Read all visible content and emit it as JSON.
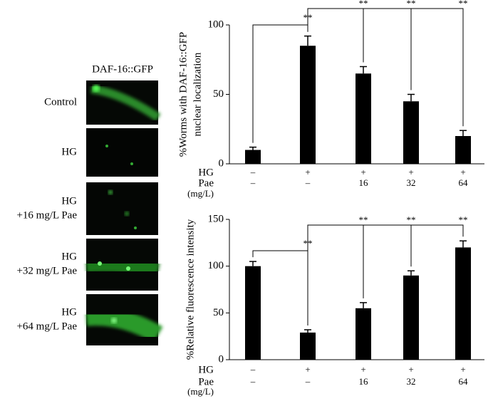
{
  "panel": {
    "title": "DAF-16::GFP",
    "labels": [
      [
        "Control"
      ],
      [
        "HG"
      ],
      [
        "HG",
        "+16 mg/L Pae"
      ],
      [
        "HG",
        "+32 mg/L Pae"
      ],
      [
        "HG",
        "+64 mg/L Pae"
      ]
    ]
  },
  "chart_data": [
    {
      "type": "bar",
      "ylabel": [
        "%Worms with DAF-16::GFP",
        "nuclear localization"
      ],
      "values": [
        10,
        85,
        65,
        45,
        20
      ],
      "errors": [
        2,
        7,
        5,
        5,
        4
      ],
      "color": "#000000",
      "ylim": [
        0,
        100
      ],
      "yticks": [
        0,
        50,
        100
      ],
      "treatments": [
        {
          "name": "HG",
          "values": [
            "–",
            "+",
            "+",
            "+",
            "+"
          ]
        },
        {
          "name": "Pae",
          "unit": "(mg/L)",
          "values": [
            "–",
            "–",
            "16",
            "32",
            "64"
          ]
        }
      ],
      "annotations": [
        "**",
        "**",
        "**",
        "**"
      ]
    },
    {
      "type": "bar",
      "ylabel": [
        "%Relative fluorescence intensity"
      ],
      "values": [
        100,
        29,
        55,
        90,
        120
      ],
      "errors": [
        5,
        3,
        6,
        5,
        7
      ],
      "color": "#000000",
      "ylim": [
        0,
        150
      ],
      "yticks": [
        0,
        50,
        100,
        150
      ],
      "treatments": [
        {
          "name": "HG",
          "values": [
            "–",
            "+",
            "+",
            "+",
            "+"
          ]
        },
        {
          "name": "Pae",
          "unit": "(mg/L)",
          "values": [
            "–",
            "–",
            "16",
            "32",
            "64"
          ]
        }
      ],
      "annotations": [
        "**",
        "**",
        "**",
        "**"
      ]
    }
  ]
}
